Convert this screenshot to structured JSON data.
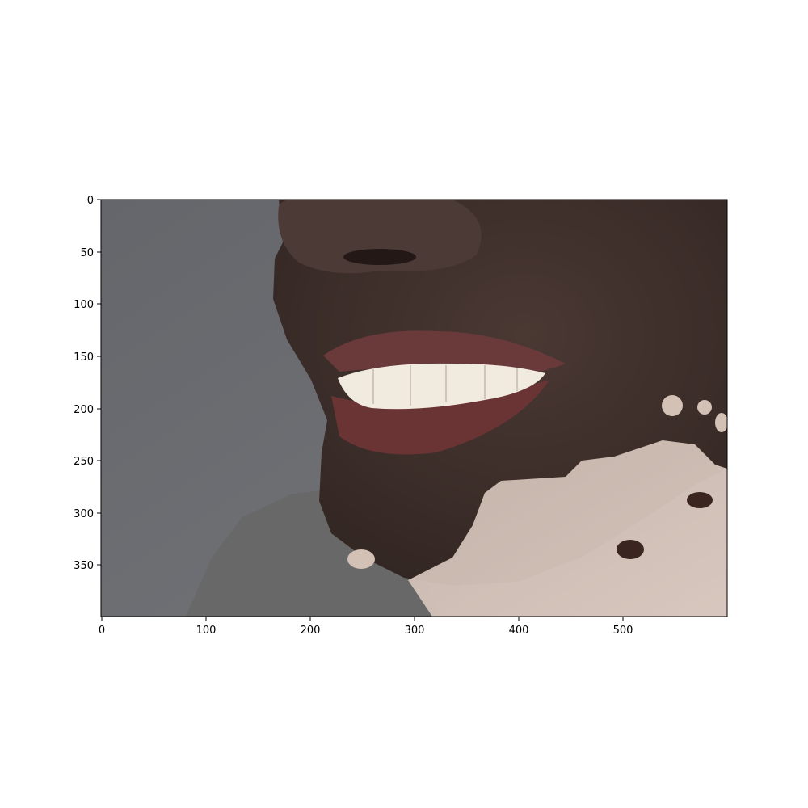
{
  "figure": {
    "image": {
      "description_name": "smiling-mouth-photo",
      "colors": {
        "background_wall": "#6b6d72",
        "skin_dark": "#3e2e2a",
        "lip": "#6a3a3a",
        "teeth": "#f1ebe0",
        "shirt": "#6a6a6a",
        "mask_overlay": "#d8c6bb"
      }
    },
    "axes": {
      "x_ticks": [
        "0",
        "100",
        "200",
        "300",
        "400",
        "500"
      ],
      "y_ticks": [
        "0",
        "50",
        "100",
        "150",
        "200",
        "250",
        "300",
        "350"
      ],
      "x_range": [
        0,
        600
      ],
      "y_range": [
        0,
        400
      ]
    }
  }
}
